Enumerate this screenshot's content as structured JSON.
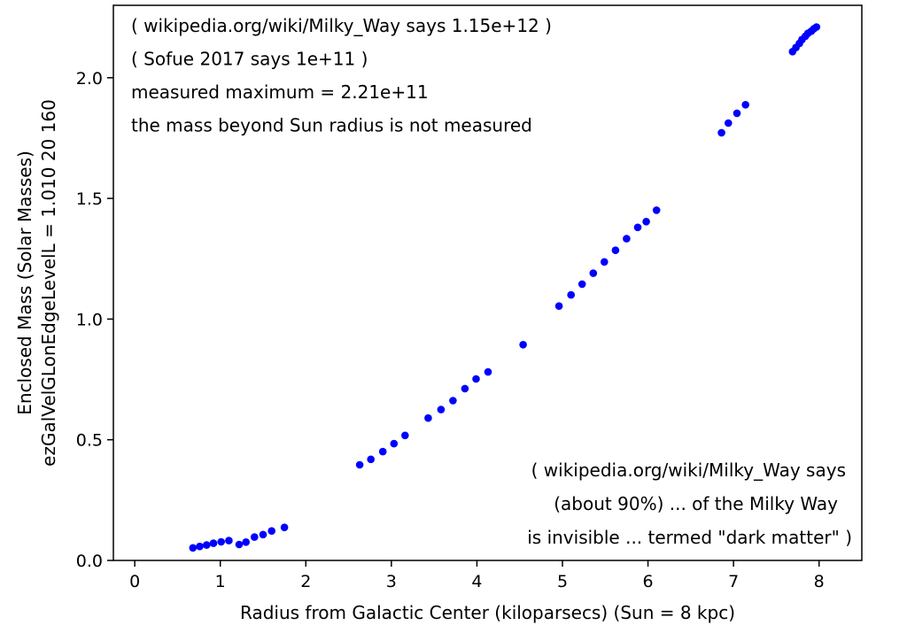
{
  "chart_data": {
    "type": "scatter",
    "xlabel": "Radius from Galactic Center (kiloparsecs)  (Sun = 8 kpc)",
    "ylabel_line1": "Enclosed Mass (Solar Masses)",
    "ylabel_line2": "ezGalVelGLonEdgeLevelL = 1.010  20  160",
    "xlim": [
      -0.25,
      8.5
    ],
    "ylim": [
      0,
      2.3
    ],
    "x_ticks": [
      0,
      1,
      2,
      3,
      4,
      5,
      6,
      7,
      8
    ],
    "x_tick_labels": [
      "0",
      "1",
      "2",
      "3",
      "4",
      "5",
      "6",
      "7",
      "8"
    ],
    "y_ticks": [
      0,
      0.5,
      1.0,
      1.5,
      2.0
    ],
    "y_tick_labels": [
      "0.0",
      "0.5",
      "1.0",
      "1.5",
      "2.0"
    ],
    "y_scale_factor": 100000000000.0,
    "grid": false,
    "marker_color": "#0000ff",
    "annotations_top_left": [
      "( wikipedia.org/wiki/Milky_Way says 1.15e+12 )",
      "( Sofue 2017 says 1e+11 )",
      "measured maximum = 2.21e+11",
      "the mass beyond Sun radius is not measured"
    ],
    "annotations_bottom_right": [
      "( wikipedia.org/wiki/Milky_Way says",
      "(about 90%) ... of the Milky Way",
      "is invisible ... termed \"dark matter\" )"
    ],
    "points": [
      {
        "x": 0.68,
        "y": 0.052
      },
      {
        "x": 0.76,
        "y": 0.058
      },
      {
        "x": 0.84,
        "y": 0.064
      },
      {
        "x": 0.92,
        "y": 0.071
      },
      {
        "x": 1.01,
        "y": 0.077
      },
      {
        "x": 1.1,
        "y": 0.082
      },
      {
        "x": 1.22,
        "y": 0.066
      },
      {
        "x": 1.3,
        "y": 0.076
      },
      {
        "x": 1.4,
        "y": 0.097
      },
      {
        "x": 1.5,
        "y": 0.107
      },
      {
        "x": 1.6,
        "y": 0.122
      },
      {
        "x": 1.75,
        "y": 0.137
      },
      {
        "x": 2.63,
        "y": 0.396
      },
      {
        "x": 2.76,
        "y": 0.419
      },
      {
        "x": 2.9,
        "y": 0.451
      },
      {
        "x": 3.03,
        "y": 0.484
      },
      {
        "x": 3.16,
        "y": 0.518
      },
      {
        "x": 3.43,
        "y": 0.59
      },
      {
        "x": 3.58,
        "y": 0.625
      },
      {
        "x": 3.72,
        "y": 0.662
      },
      {
        "x": 3.86,
        "y": 0.712
      },
      {
        "x": 3.99,
        "y": 0.752
      },
      {
        "x": 4.13,
        "y": 0.781
      },
      {
        "x": 4.54,
        "y": 0.894
      },
      {
        "x": 4.96,
        "y": 1.054
      },
      {
        "x": 5.1,
        "y": 1.1
      },
      {
        "x": 5.23,
        "y": 1.145
      },
      {
        "x": 5.36,
        "y": 1.19
      },
      {
        "x": 5.49,
        "y": 1.237
      },
      {
        "x": 5.62,
        "y": 1.285
      },
      {
        "x": 5.75,
        "y": 1.333
      },
      {
        "x": 5.88,
        "y": 1.38
      },
      {
        "x": 5.98,
        "y": 1.404
      },
      {
        "x": 6.1,
        "y": 1.451
      },
      {
        "x": 6.86,
        "y": 1.772
      },
      {
        "x": 6.94,
        "y": 1.812
      },
      {
        "x": 7.04,
        "y": 1.853
      },
      {
        "x": 7.14,
        "y": 1.888
      },
      {
        "x": 7.69,
        "y": 2.108
      },
      {
        "x": 7.73,
        "y": 2.125
      },
      {
        "x": 7.77,
        "y": 2.142
      },
      {
        "x": 7.8,
        "y": 2.158
      },
      {
        "x": 7.84,
        "y": 2.172
      },
      {
        "x": 7.87,
        "y": 2.184
      },
      {
        "x": 7.91,
        "y": 2.193
      },
      {
        "x": 7.94,
        "y": 2.203
      },
      {
        "x": 7.97,
        "y": 2.21
      }
    ]
  }
}
